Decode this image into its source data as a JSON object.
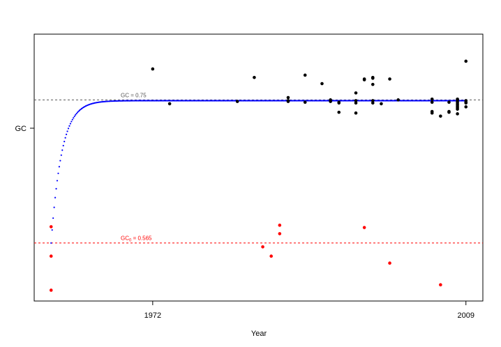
{
  "chart_data": {
    "type": "scatter",
    "title": "",
    "xlabel": "Year",
    "ylabel": "GC",
    "x_ticks": [
      1972,
      2009
    ],
    "xlim": [
      1958,
      2011
    ],
    "ylim": [
      0.49,
      0.835
    ],
    "y_tick_value": 0.7,
    "grid": false,
    "legend": "none",
    "colors": {
      "points_above": "#000000",
      "points_below": "#ff0000",
      "curve": "#0000ff",
      "ref_upper": "#555555",
      "ref_lower": "#ff0000"
    },
    "reference_lines": [
      {
        "label": "GC = 0.75",
        "y": 0.75,
        "color": "#555555"
      },
      {
        "label_main": "GC",
        "label_sub": "0",
        "label_rest": " = 0.565",
        "y": 0.565,
        "color": "#ff0000"
      }
    ],
    "curve": {
      "asymptote": 0.749,
      "start": 0.565,
      "x_start": 1960,
      "rate": 0.8
    },
    "series": [
      {
        "color": "#000000",
        "points": [
          [
            1972,
            0.79
          ],
          [
            1974,
            0.745
          ],
          [
            1982,
            0.748
          ],
          [
            1984,
            0.779
          ],
          [
            1988,
            0.753
          ],
          [
            1988,
            0.748
          ],
          [
            1988,
            0.749
          ],
          [
            1990,
            0.782
          ],
          [
            1990,
            0.747
          ],
          [
            1992,
            0.771
          ],
          [
            1993,
            0.75
          ],
          [
            1993,
            0.748
          ],
          [
            1994,
            0.747
          ],
          [
            1994,
            0.746
          ],
          [
            1994,
            0.734
          ],
          [
            1996,
            0.759
          ],
          [
            1996,
            0.749
          ],
          [
            1996,
            0.746
          ],
          [
            1996,
            0.733
          ],
          [
            1997,
            0.777
          ],
          [
            1997,
            0.776
          ],
          [
            1998,
            0.778
          ],
          [
            1998,
            0.779
          ],
          [
            1998,
            0.77
          ],
          [
            1998,
            0.749
          ],
          [
            1998,
            0.746
          ],
          [
            1999,
            0.745
          ],
          [
            2000,
            0.777
          ],
          [
            2001,
            0.75
          ],
          [
            2005,
            0.751
          ],
          [
            2005,
            0.747
          ],
          [
            2005,
            0.735
          ],
          [
            2005,
            0.733
          ],
          [
            2006,
            0.729
          ],
          [
            2007,
            0.747
          ],
          [
            2007,
            0.735
          ],
          [
            2007,
            0.734
          ],
          [
            2008,
            0.751
          ],
          [
            2008,
            0.75
          ],
          [
            2008,
            0.748
          ],
          [
            2008,
            0.746
          ],
          [
            2008,
            0.744
          ],
          [
            2008,
            0.742
          ],
          [
            2008,
            0.74
          ],
          [
            2008,
            0.738
          ],
          [
            2008,
            0.732
          ],
          [
            2009,
            0.8
          ],
          [
            2009,
            0.749
          ],
          [
            2009,
            0.747
          ],
          [
            2009,
            0.746
          ],
          [
            2009,
            0.741
          ]
        ]
      },
      {
        "color": "#ff0000",
        "points": [
          [
            1960,
            0.586
          ],
          [
            1960,
            0.548
          ],
          [
            1960,
            0.504
          ],
          [
            1985,
            0.56
          ],
          [
            1986,
            0.548
          ],
          [
            1987,
            0.588
          ],
          [
            1987,
            0.577
          ],
          [
            1997,
            0.585
          ],
          [
            2000,
            0.539
          ],
          [
            2006,
            0.511
          ]
        ]
      }
    ]
  }
}
